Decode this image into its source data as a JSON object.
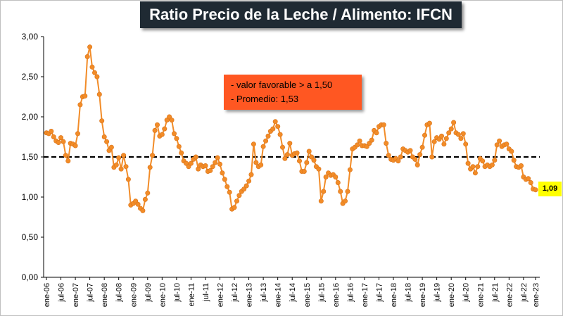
{
  "chart_data": {
    "type": "line",
    "title": "Ratio Precio de la Leche / Alimento: IFCN",
    "y_ticks": [
      "3,00",
      "2,50",
      "2,00",
      "1,50",
      "1,00",
      "0,50",
      "0,00"
    ],
    "ylim": [
      0,
      3
    ],
    "x_tick_labels": [
      "ene-06",
      "jul-06",
      "ene-07",
      "jul-07",
      "ene-08",
      "jul-08",
      "ene-09",
      "jul-09",
      "ene-10",
      "jul-10",
      "ene-11",
      "jul-11",
      "ene-12",
      "jul-12",
      "ene-13",
      "jul-13",
      "ene-14",
      "jul-14",
      "ene-15",
      "jul-15",
      "ene-16",
      "jul-16",
      "ene-17",
      "jul-17",
      "ene-18",
      "jul-18",
      "ene-19",
      "jul-19",
      "ene-20",
      "jul-20",
      "ene-21",
      "jul-21",
      "ene-22",
      "jul-22",
      "ene-23"
    ],
    "reference_line": 1.5,
    "annotations": [
      "- valor favorable > a 1,50",
      "- Promedio: 1,53"
    ],
    "last_value_label": "1,09",
    "grid": false,
    "series": [
      {
        "color": "#f28c28",
        "values": [
          1.8,
          1.79,
          1.82,
          1.75,
          1.7,
          1.68,
          1.74,
          1.69,
          1.52,
          1.45,
          1.67,
          1.66,
          1.64,
          1.79,
          2.15,
          2.25,
          2.26,
          2.75,
          2.87,
          2.62,
          2.55,
          2.5,
          2.28,
          1.95,
          1.75,
          1.69,
          1.58,
          1.62,
          1.37,
          1.4,
          1.49,
          1.35,
          1.52,
          1.38,
          1.22,
          0.9,
          0.92,
          0.95,
          0.91,
          0.86,
          0.83,
          0.97,
          1.05,
          1.37,
          1.52,
          1.83,
          1.9,
          1.76,
          1.78,
          1.85,
          1.96,
          2.0,
          1.96,
          1.79,
          1.73,
          1.63,
          1.55,
          1.45,
          1.42,
          1.38,
          1.42,
          1.47,
          1.5,
          1.35,
          1.4,
          1.38,
          1.39,
          1.32,
          1.33,
          1.38,
          1.43,
          1.49,
          1.41,
          1.3,
          1.22,
          1.13,
          1.06,
          0.85,
          0.87,
          0.95,
          1.02,
          1.07,
          1.1,
          1.14,
          1.2,
          1.28,
          1.66,
          1.43,
          1.38,
          1.4,
          1.63,
          1.7,
          1.76,
          1.82,
          1.85,
          1.94,
          1.88,
          1.78,
          1.62,
          1.48,
          1.53,
          1.67,
          1.52,
          1.54,
          1.55,
          1.45,
          1.32,
          1.32,
          1.43,
          1.57,
          1.5,
          1.46,
          1.38,
          1.35,
          0.95,
          1.07,
          1.25,
          1.3,
          1.27,
          1.28,
          1.25,
          1.18,
          1.07,
          0.92,
          0.95,
          1.07,
          1.34,
          1.6,
          1.62,
          1.65,
          1.7,
          1.64,
          1.64,
          1.63,
          1.67,
          1.71,
          1.83,
          1.8,
          1.88,
          1.9,
          1.9,
          1.67,
          1.52,
          1.47,
          1.46,
          1.48,
          1.45,
          1.5,
          1.6,
          1.58,
          1.56,
          1.58,
          1.5,
          1.47,
          1.4,
          1.53,
          1.62,
          1.77,
          1.9,
          1.92,
          1.5,
          1.69,
          1.74,
          1.72,
          1.76,
          1.66,
          1.73,
          1.8,
          1.85,
          1.93,
          1.8,
          1.78,
          1.73,
          1.79,
          1.66,
          1.42,
          1.35,
          1.38,
          1.3,
          1.38,
          1.48,
          1.45,
          1.38,
          1.4,
          1.38,
          1.4,
          1.46,
          1.65,
          1.7,
          1.63,
          1.65,
          1.66,
          1.6,
          1.57,
          1.46,
          1.38,
          1.37,
          1.39,
          1.25,
          1.22,
          1.23,
          1.18,
          1.1,
          1.09
        ]
      }
    ]
  }
}
